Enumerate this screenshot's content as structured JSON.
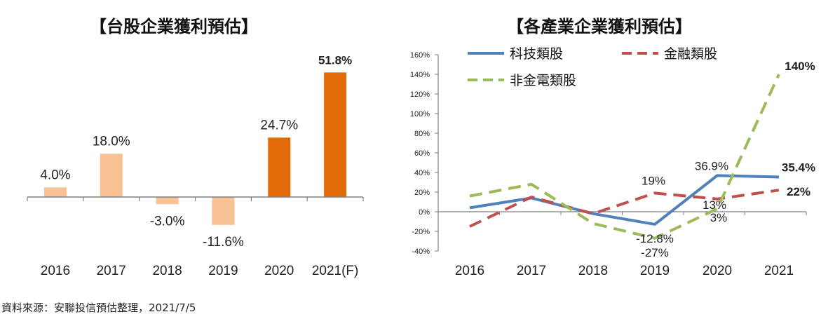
{
  "source_note": "資料來源：安聯投信預估整理，2021/7/5",
  "colors": {
    "light_orange": "#F8C294",
    "dark_orange": "#E36C0A",
    "tech": "#4F81BD",
    "finance": "#C0504D",
    "non_fin": "#9BBB59",
    "axis": "#808080"
  },
  "chart_data": [
    {
      "type": "bar",
      "title": "【台股企業獲利預估】",
      "categories": [
        "2016",
        "2017",
        "2018",
        "2019",
        "2020",
        "2021(F)"
      ],
      "values": [
        4.0,
        18.0,
        -3.0,
        -11.6,
        24.7,
        51.8
      ],
      "value_labels": [
        "4.0%",
        "18.0%",
        "-3.0%",
        "-11.6%",
        "24.7%",
        "51.8%"
      ],
      "bar_colors": [
        "#F8C294",
        "#F8C294",
        "#F8C294",
        "#F8C294",
        "#E36C0A",
        "#E36C0A"
      ],
      "label_bold": [
        false,
        false,
        false,
        false,
        false,
        true
      ],
      "unit": "%",
      "ylim": [
        -15,
        55
      ],
      "grid": false
    },
    {
      "type": "line",
      "title": "【各產業企業獲利預估】",
      "x": [
        "2016",
        "2017",
        "2018",
        "2019",
        "2020",
        "2021"
      ],
      "yticks": [
        "160%",
        "140%",
        "120%",
        "100%",
        "80%",
        "60%",
        "40%",
        "20%",
        "0%",
        "-20%",
        "-40%"
      ],
      "ylim": [
        -40,
        160
      ],
      "legend_position": "top",
      "grid": false,
      "series": [
        {
          "name": "科技類股",
          "values": [
            4,
            14,
            -2,
            -12.8,
            36.9,
            35.4
          ],
          "color": "#4F81BD",
          "style": "solid"
        },
        {
          "name": "金融類股",
          "values": [
            -15,
            15,
            -2,
            19,
            13,
            22
          ],
          "color": "#C0504D",
          "style": "dashed"
        },
        {
          "name": "非金電類股",
          "values": [
            16,
            28,
            -12,
            -27,
            3,
            140
          ],
          "color": "#9BBB59",
          "style": "dashed"
        }
      ],
      "annotations": [
        {
          "series": 0,
          "index": 3,
          "text": "-12.8%",
          "bold": false
        },
        {
          "series": 0,
          "index": 4,
          "text": "36.9%",
          "bold": false
        },
        {
          "series": 0,
          "index": 5,
          "text": "35.4%",
          "bold": true
        },
        {
          "series": 1,
          "index": 3,
          "text": "19%",
          "bold": false
        },
        {
          "series": 1,
          "index": 4,
          "text": "13%",
          "bold": false
        },
        {
          "series": 1,
          "index": 5,
          "text": "22%",
          "bold": true
        },
        {
          "series": 2,
          "index": 3,
          "text": "-27%",
          "bold": false
        },
        {
          "series": 2,
          "index": 4,
          "text": "3%",
          "bold": false
        },
        {
          "series": 2,
          "index": 5,
          "text": "140%",
          "bold": true
        }
      ]
    }
  ]
}
